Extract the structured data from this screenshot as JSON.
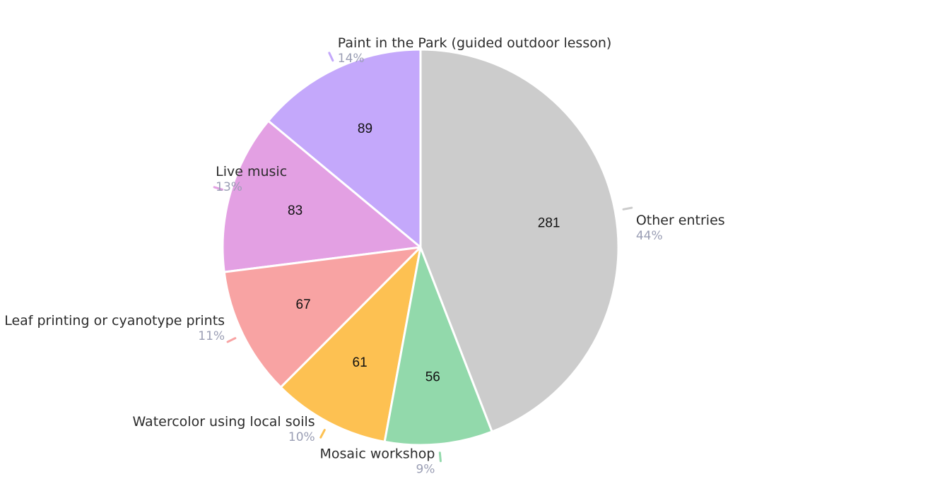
{
  "chart_data": {
    "type": "pie",
    "start_angle_deg": 90,
    "direction": "counterclockwise",
    "legend": "none",
    "slices": [
      {
        "label": "Paint in the Park (guided outdoor lesson)",
        "value": 89,
        "percent_label": "14%",
        "color": "#c4a8fb"
      },
      {
        "label": "Live music",
        "value": 83,
        "percent_label": "13%",
        "color": "#e3a0e3"
      },
      {
        "label": "Leaf printing or cyanotype prints",
        "value": 67,
        "percent_label": "11%",
        "color": "#f8a3a3"
      },
      {
        "label": "Watercolor using local soils",
        "value": 61,
        "percent_label": "10%",
        "color": "#fdc152"
      },
      {
        "label": "Mosaic workshop",
        "value": 56,
        "percent_label": "9%",
        "color": "#92d9ab"
      },
      {
        "label": "Other entries",
        "value": 281,
        "percent_label": "44%",
        "color": "#cccccc"
      }
    ]
  }
}
